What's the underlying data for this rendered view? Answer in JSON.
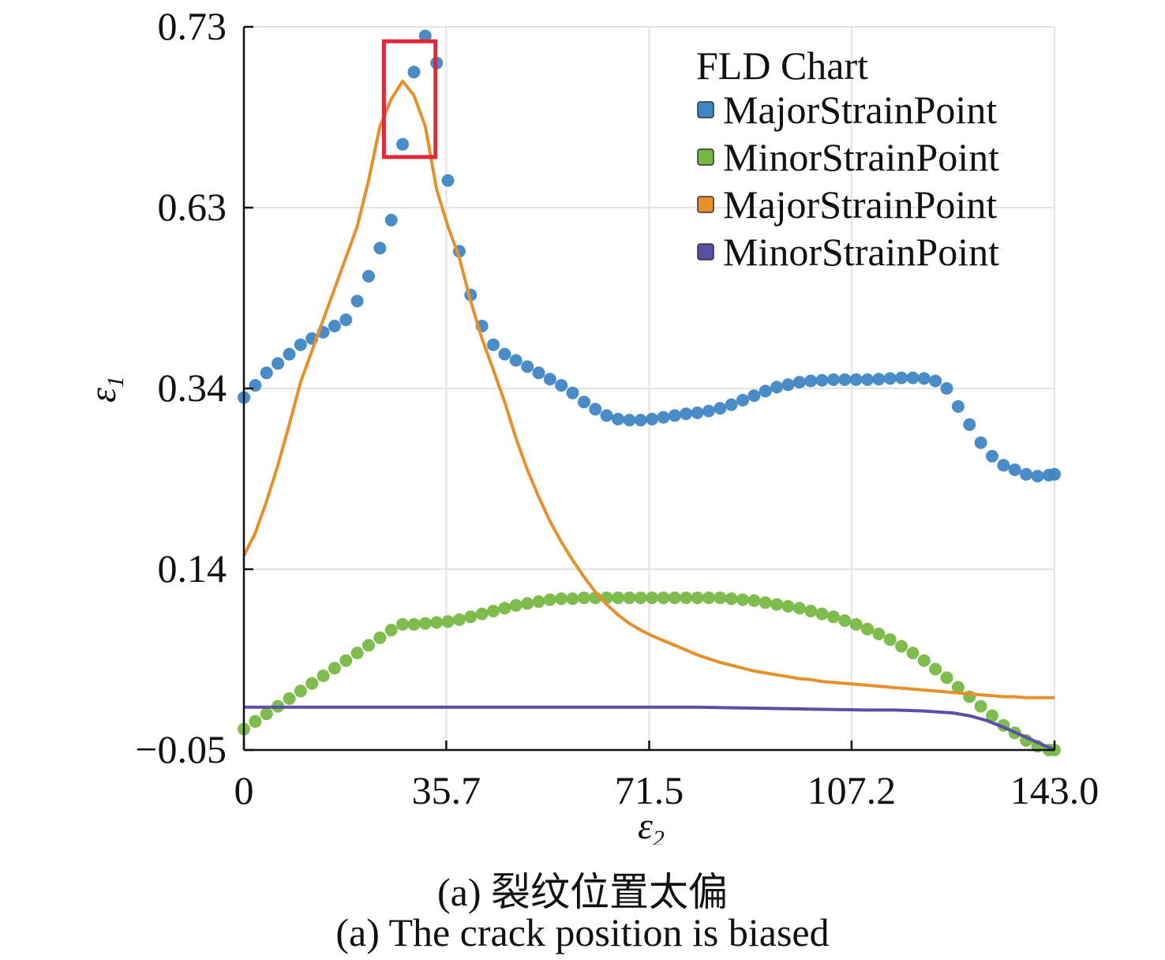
{
  "chart_data": {
    "type": "scatter",
    "xlabel": "ε",
    "xlabel_sub": "2",
    "ylabel": "ε",
    "ylabel_sub": "1",
    "x_ticks": [
      "0",
      "35.7",
      "71.5",
      "107.2",
      "143.0"
    ],
    "x_tick_values": [
      0,
      35.7,
      71.5,
      107.2,
      143.0
    ],
    "y_ticks": [
      "−0.05",
      "0.14",
      "0.34",
      "0.63",
      "0.73"
    ],
    "xlim": [
      0,
      143.0
    ],
    "grid": true,
    "legend": {
      "title": "FLD Chart",
      "placement": "top-right",
      "entries": [
        {
          "label": "MajorStrainPoint",
          "color": "#3f86c4",
          "marker": "dots"
        },
        {
          "label": "MinorStrainPoint",
          "color": "#77b843",
          "marker": "dots"
        },
        {
          "label": "MajorStrainPoint",
          "color": "#e6902b",
          "marker": "line"
        },
        {
          "label": "MinorStrainPoint",
          "color": "#5a4fa6",
          "marker": "line"
        }
      ]
    },
    "series": [
      {
        "label": "MajorStrainPoint",
        "style": "dots",
        "color": "#3f86c4",
        "x": [
          0,
          2,
          4,
          6,
          8,
          10,
          12,
          14,
          16,
          18,
          20,
          22,
          24,
          26,
          28,
          30,
          32,
          34,
          36,
          38,
          40,
          42,
          44,
          46,
          48,
          50,
          52,
          54,
          56,
          58,
          60,
          62,
          64,
          66,
          68,
          70,
          72,
          74,
          76,
          78,
          80,
          82,
          84,
          86,
          88,
          90,
          92,
          94,
          96,
          98,
          100,
          102,
          104,
          106,
          108,
          110,
          112,
          114,
          116,
          118,
          120,
          122,
          124,
          126,
          128,
          130,
          132,
          134,
          136,
          138,
          140,
          142,
          143
        ],
        "y": [
          0.33,
          0.345,
          0.365,
          0.38,
          0.395,
          0.41,
          0.42,
          0.43,
          0.44,
          0.45,
          0.48,
          0.52,
          0.565,
          0.61,
          0.665,
          0.705,
          0.725,
          0.71,
          0.645,
          0.56,
          0.49,
          0.44,
          0.41,
          0.395,
          0.385,
          0.375,
          0.365,
          0.355,
          0.345,
          0.335,
          0.325,
          0.317,
          0.31,
          0.306,
          0.305,
          0.305,
          0.306,
          0.308,
          0.31,
          0.312,
          0.313,
          0.315,
          0.318,
          0.322,
          0.327,
          0.332,
          0.337,
          0.342,
          0.346,
          0.35,
          0.352,
          0.353,
          0.354,
          0.354,
          0.354,
          0.354,
          0.355,
          0.356,
          0.357,
          0.357,
          0.356,
          0.352,
          0.34,
          0.32,
          0.3,
          0.28,
          0.265,
          0.255,
          0.25,
          0.245,
          0.243,
          0.244,
          0.245
        ]
      },
      {
        "label": "MinorStrainPoint",
        "style": "dots",
        "color": "#77b843",
        "x": [
          0,
          2,
          4,
          6,
          8,
          10,
          12,
          14,
          16,
          18,
          20,
          22,
          24,
          26,
          28,
          30,
          32,
          34,
          36,
          38,
          40,
          42,
          44,
          46,
          48,
          50,
          52,
          54,
          56,
          58,
          60,
          62,
          64,
          66,
          68,
          70,
          72,
          74,
          76,
          78,
          80,
          82,
          84,
          86,
          88,
          90,
          92,
          94,
          96,
          98,
          100,
          102,
          104,
          106,
          108,
          110,
          112,
          114,
          116,
          118,
          120,
          122,
          124,
          126,
          128,
          130,
          132,
          134,
          136,
          138,
          140,
          142,
          143
        ],
        "y": [
          -0.028,
          -0.02,
          -0.012,
          -0.004,
          0.004,
          0.012,
          0.02,
          0.028,
          0.036,
          0.044,
          0.052,
          0.06,
          0.068,
          0.076,
          0.082,
          0.082,
          0.083,
          0.084,
          0.085,
          0.087,
          0.09,
          0.093,
          0.096,
          0.099,
          0.102,
          0.104,
          0.106,
          0.108,
          0.109,
          0.109,
          0.11,
          0.11,
          0.11,
          0.11,
          0.11,
          0.11,
          0.11,
          0.11,
          0.11,
          0.11,
          0.11,
          0.11,
          0.11,
          0.109,
          0.108,
          0.107,
          0.105,
          0.103,
          0.101,
          0.099,
          0.096,
          0.093,
          0.09,
          0.086,
          0.082,
          0.077,
          0.072,
          0.066,
          0.059,
          0.052,
          0.044,
          0.035,
          0.026,
          0.016,
          0.006,
          -0.004,
          -0.014,
          -0.024,
          -0.032,
          -0.04,
          -0.046,
          -0.05,
          -0.05
        ]
      },
      {
        "label": "MajorStrainPoint",
        "style": "line",
        "color": "#e6902b",
        "x": [
          0,
          2,
          4,
          6,
          8,
          10,
          12,
          14,
          16,
          18,
          20,
          22,
          24,
          26,
          28,
          30,
          32,
          34,
          36,
          38,
          40,
          42,
          44,
          46,
          48,
          50,
          52,
          54,
          56,
          58,
          60,
          62,
          64,
          66,
          68,
          70,
          72,
          74,
          76,
          78,
          80,
          82,
          84,
          86,
          88,
          90,
          92,
          94,
          96,
          98,
          100,
          102,
          104,
          106,
          108,
          110,
          112,
          114,
          116,
          118,
          120,
          122,
          124,
          126,
          128,
          130,
          132,
          134,
          136,
          138,
          140,
          142,
          143
        ],
        "y": [
          0.155,
          0.18,
          0.215,
          0.255,
          0.3,
          0.35,
          0.4,
          0.45,
          0.5,
          0.55,
          0.6,
          0.645,
          0.675,
          0.69,
          0.7,
          0.692,
          0.675,
          0.64,
          0.6,
          0.55,
          0.48,
          0.42,
          0.37,
          0.325,
          0.285,
          0.25,
          0.22,
          0.193,
          0.17,
          0.15,
          0.132,
          0.116,
          0.103,
          0.092,
          0.083,
          0.076,
          0.07,
          0.065,
          0.06,
          0.055,
          0.05,
          0.046,
          0.042,
          0.039,
          0.036,
          0.033,
          0.031,
          0.029,
          0.027,
          0.025,
          0.024,
          0.022,
          0.021,
          0.02,
          0.019,
          0.018,
          0.017,
          0.016,
          0.015,
          0.014,
          0.013,
          0.012,
          0.011,
          0.01,
          0.009,
          0.008,
          0.007,
          0.006,
          0.006,
          0.005,
          0.005,
          0.005,
          0.005
        ]
      },
      {
        "label": "MinorStrainPoint",
        "style": "line",
        "color": "#5a4fa6",
        "x": [
          0,
          10,
          20,
          30,
          40,
          50,
          60,
          70,
          80,
          90,
          100,
          110,
          115,
          120,
          125,
          128,
          131,
          134,
          137,
          140,
          143
        ],
        "y": [
          -0.005,
          -0.005,
          -0.005,
          -0.005,
          -0.005,
          -0.005,
          -0.005,
          -0.005,
          -0.005,
          -0.006,
          -0.007,
          -0.008,
          -0.008,
          -0.009,
          -0.011,
          -0.014,
          -0.019,
          -0.026,
          -0.034,
          -0.042,
          -0.05
        ]
      }
    ],
    "annotation_box": {
      "x": [
        24.7,
        33.8
      ],
      "y": [
        0.658,
        0.722
      ],
      "color": "#e0283a"
    }
  },
  "caption": {
    "line1": "(a) 裂纹位置太偏",
    "line2": "(a) The crack position is biased"
  }
}
